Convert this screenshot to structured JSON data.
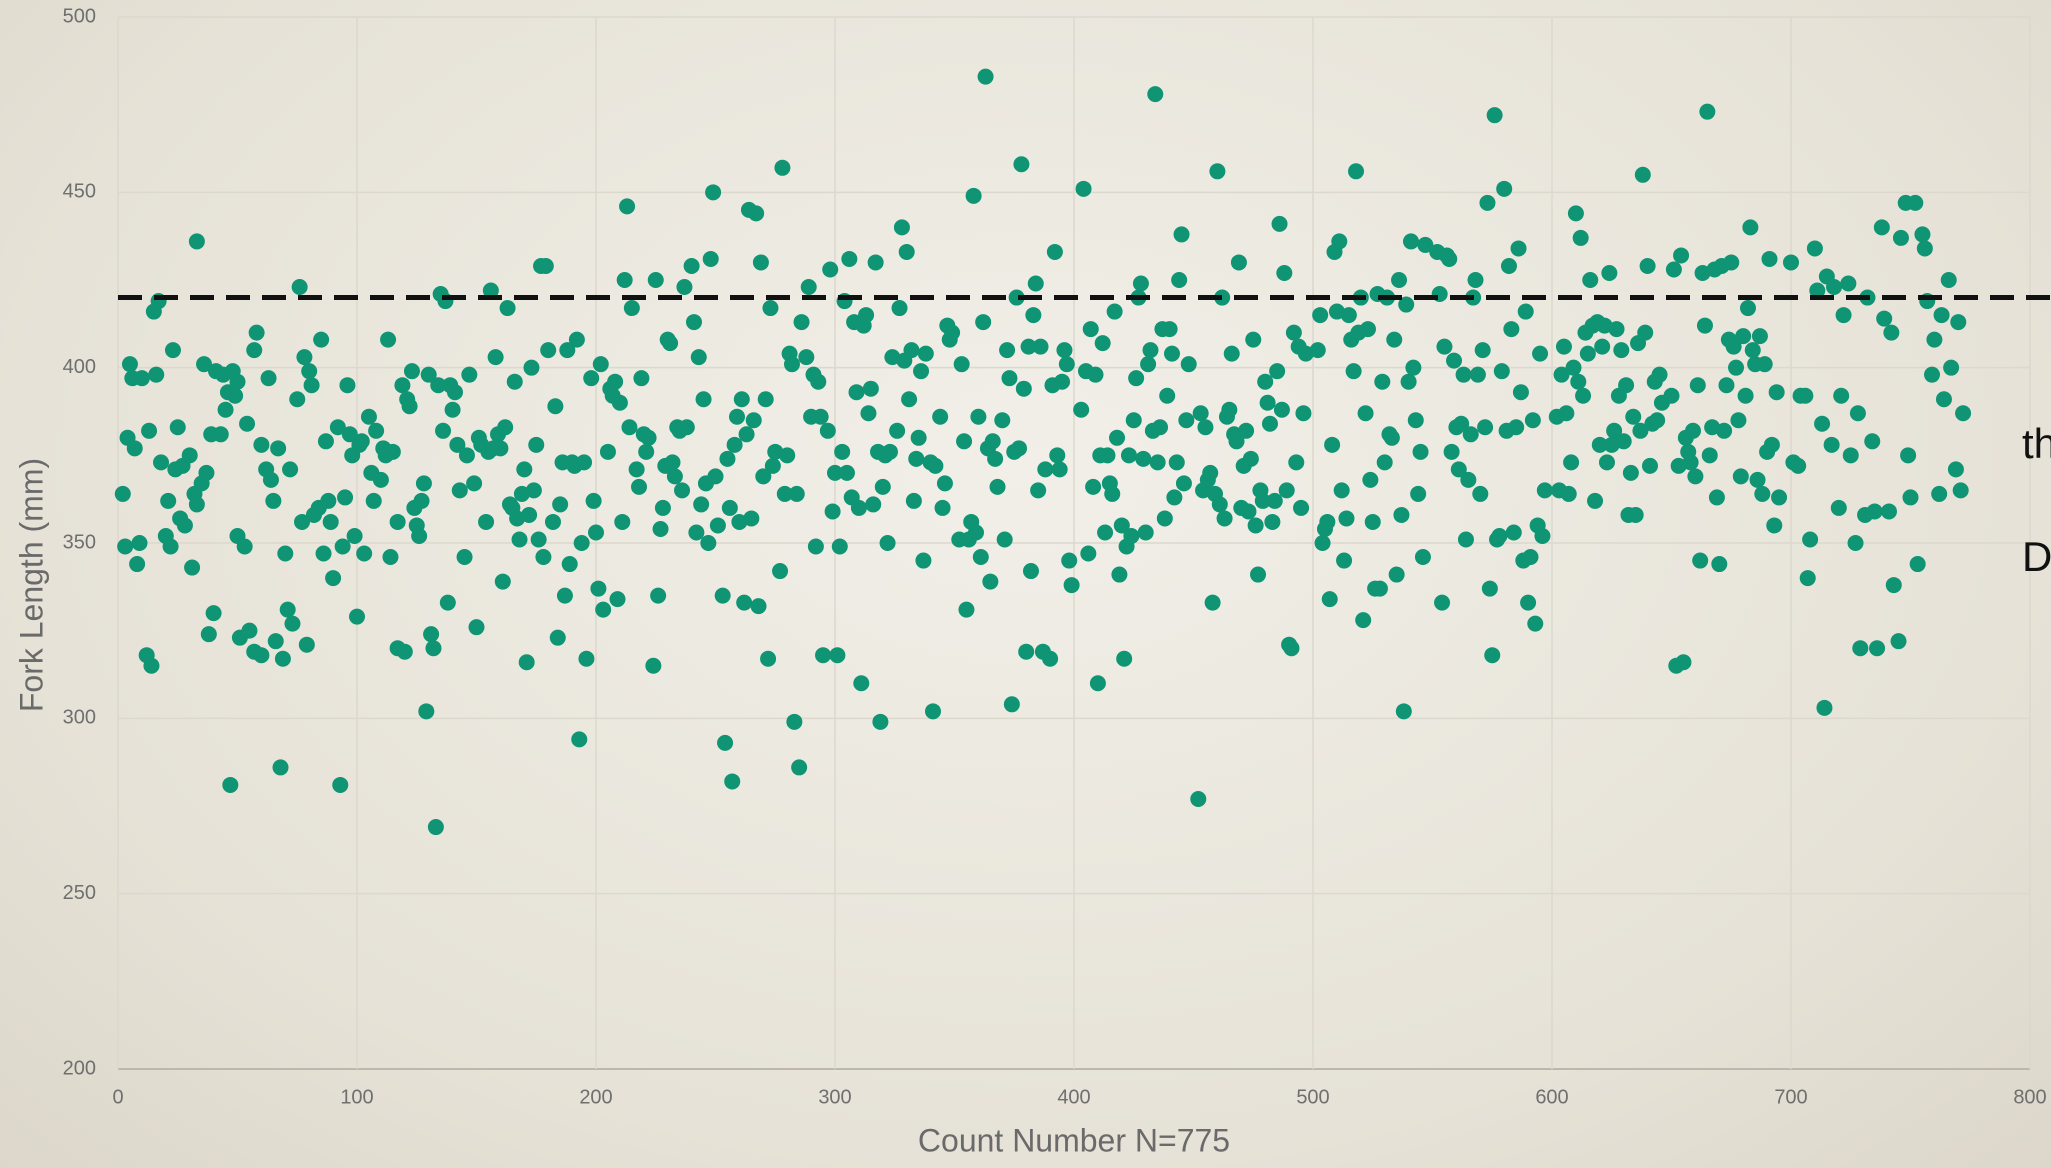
{
  "chart_data": {
    "type": "scatter",
    "xlabel": "Count Number N=775",
    "ylabel": "Fork Length (mm)",
    "annotations": [
      "th",
      "D"
    ],
    "reference_line": 420,
    "color": "#0f9474",
    "grid": true,
    "xlim": [
      0,
      800
    ],
    "xticks": [
      0,
      100,
      200,
      300,
      400,
      500,
      600,
      700,
      800
    ],
    "ylim": [
      200,
      500
    ],
    "yticks": [
      200,
      250,
      300,
      350,
      400,
      450,
      500
    ],
    "x": [
      2,
      3,
      4,
      5,
      6,
      7,
      8,
      9,
      10,
      12,
      13,
      14,
      15,
      16,
      17,
      18,
      20,
      21,
      22,
      23,
      24,
      25,
      26,
      27,
      28,
      30,
      31,
      32,
      33,
      33,
      35,
      36,
      37,
      38,
      39,
      40,
      41,
      43,
      44,
      45,
      46,
      47,
      48,
      49,
      50,
      50,
      51,
      53,
      54,
      55,
      57,
      57,
      58,
      60,
      60,
      62,
      63,
      64,
      65,
      66,
      67,
      68,
      69,
      70,
      71,
      72,
      73,
      75,
      76,
      77,
      78,
      79,
      80,
      81,
      82,
      84,
      85,
      86,
      87,
      88,
      89,
      90,
      92,
      93,
      94,
      95,
      96,
      97,
      98,
      99,
      100,
      101,
      102,
      103,
      105,
      106,
      107,
      108,
      110,
      111,
      112,
      113,
      114,
      115,
      117,
      117,
      119,
      120,
      121,
      122,
      123,
      124,
      125,
      126,
      127,
      128,
      129,
      130,
      131,
      132,
      133,
      134,
      135,
      136,
      137,
      138,
      139,
      140,
      141,
      142,
      143,
      145,
      146,
      147,
      149,
      150,
      151,
      152,
      154,
      155,
      156,
      157,
      158,
      159,
      160,
      161,
      162,
      163,
      164,
      165,
      166,
      167,
      168,
      169,
      170,
      171,
      172,
      173,
      174,
      175,
      176,
      177,
      178,
      179,
      180,
      182,
      183,
      184,
      185,
      186,
      187,
      188,
      189,
      190,
      191,
      192,
      193,
      194,
      195,
      196,
      198,
      199,
      200,
      201,
      202,
      203,
      205,
      206,
      207,
      208,
      209,
      210,
      211,
      212,
      213,
      214,
      215,
      217,
      218,
      219,
      220,
      221,
      222,
      224,
      225,
      226,
      227,
      228,
      229,
      230,
      231,
      232,
      233,
      234,
      235,
      236,
      237,
      238,
      240,
      241,
      242,
      243,
      244,
      245,
      246,
      247,
      248,
      249,
      250,
      251,
      253,
      254,
      255,
      256,
      257,
      258,
      259,
      260,
      261,
      262,
      263,
      264,
      265,
      266,
      267,
      268,
      269,
      270,
      271,
      272,
      273,
      274,
      275,
      277,
      278,
      279,
      280,
      281,
      282,
      283,
      284,
      285,
      286,
      288,
      289,
      290,
      291,
      292,
      293,
      294,
      295,
      297,
      298,
      299,
      300,
      301,
      302,
      303,
      304,
      305,
      306,
      307,
      308,
      309,
      310,
      311,
      312,
      313,
      314,
      315,
      316,
      317,
      318,
      319,
      320,
      321,
      322,
      323,
      324,
      326,
      327,
      328,
      329,
      330,
      331,
      332,
      333,
      334,
      335,
      336,
      337,
      338,
      340,
      341,
      342,
      344,
      345,
      346,
      347,
      348,
      349,
      352,
      353,
      354,
      355,
      356,
      357,
      358,
      359,
      360,
      361,
      362,
      363,
      364,
      365,
      366,
      367,
      368,
      370,
      371,
      372,
      373,
      374,
      375,
      376,
      377,
      378,
      379,
      380,
      381,
      382,
      383,
      384,
      385,
      386,
      387,
      388,
      390,
      391,
      392,
      393,
      394,
      395,
      396,
      397,
      398,
      399,
      403,
      404,
      405,
      406,
      407,
      408,
      409,
      410,
      411,
      412,
      413,
      414,
      415,
      416,
      417,
      418,
      419,
      420,
      421,
      422,
      423,
      424,
      425,
      426,
      427,
      428,
      429,
      430,
      431,
      432,
      433,
      434,
      435,
      436,
      437,
      438,
      439,
      440,
      441,
      442,
      443,
      444,
      445,
      446,
      447,
      448,
      452,
      453,
      454,
      455,
      456,
      457,
      458,
      459,
      460,
      461,
      462,
      463,
      464,
      465,
      466,
      467,
      468,
      469,
      470,
      471,
      472,
      473,
      474,
      475,
      476,
      477,
      478,
      479,
      480,
      481,
      482,
      483,
      484,
      485,
      486,
      487,
      488,
      489,
      490,
      491,
      492,
      493,
      494,
      495,
      496,
      497,
      502,
      503,
      504,
      505,
      506,
      507,
      508,
      509,
      510,
      511,
      512,
      513,
      514,
      515,
      516,
      517,
      518,
      519,
      520,
      521,
      522,
      523,
      524,
      525,
      526,
      527,
      528,
      529,
      530,
      531,
      532,
      533,
      534,
      535,
      536,
      537,
      538,
      539,
      540,
      541,
      542,
      543,
      544,
      545,
      546,
      547,
      552,
      553,
      554,
      555,
      556,
      557,
      558,
      559,
      560,
      561,
      562,
      563,
      564,
      565,
      566,
      567,
      568,
      569,
      570,
      571,
      572,
      573,
      574,
      575,
      576,
      577,
      578,
      579,
      580,
      581,
      582,
      583,
      584,
      585,
      586,
      587,
      588,
      589,
      590,
      591,
      592,
      593,
      594,
      595,
      596,
      597,
      602,
      603,
      604,
      605,
      606,
      607,
      608,
      609,
      610,
      611,
      612,
      613,
      614,
      615,
      616,
      617,
      618,
      619,
      620,
      621,
      622,
      623,
      624,
      625,
      626,
      627,
      628,
      629,
      630,
      631,
      632,
      633,
      634,
      635,
      636,
      637,
      638,
      639,
      640,
      641,
      642,
      643,
      644,
      645,
      646,
      650,
      651,
      652,
      653,
      654,
      655,
      656,
      657,
      658,
      659,
      660,
      661,
      662,
      663,
      664,
      665,
      666,
      667,
      668,
      669,
      670,
      671,
      672,
      673,
      674,
      675,
      676,
      677,
      678,
      679,
      680,
      681,
      682,
      683,
      684,
      685,
      686,
      687,
      688,
      689,
      690,
      691,
      692,
      693,
      694,
      695,
      700,
      701,
      703,
      704,
      706,
      707,
      708,
      710,
      711,
      713,
      714,
      715,
      717,
      718,
      720,
      721,
      722,
      724,
      725,
      727,
      728,
      729,
      731,
      732,
      734,
      735,
      736,
      738,
      739,
      741,
      742,
      743,
      745,
      746,
      748,
      749,
      750,
      752,
      753,
      755,
      756,
      757,
      759,
      760,
      762,
      763,
      764,
      766,
      767,
      769,
      770,
      771,
      772
    ],
    "values": [
      364,
      349,
      380,
      401,
      397,
      377,
      344,
      350,
      397,
      318,
      382,
      315,
      416,
      398,
      419,
      373,
      352,
      362,
      349,
      405,
      371,
      383,
      357,
      372,
      355,
      375,
      343,
      364,
      361,
      436,
      367,
      401,
      370,
      324,
      381,
      330,
      399,
      381,
      398,
      388,
      393,
      281,
      399,
      392,
      352,
      396,
      323,
      349,
      384,
      325,
      405,
      319,
      410,
      318,
      378,
      371,
      397,
      368,
      362,
      322,
      377,
      286,
      317,
      347,
      331,
      371,
      327,
      391,
      423,
      356,
      403,
      321,
      399,
      395,
      358,
      360,
      408,
      347,
      379,
      362,
      356,
      340,
      383,
      281,
      349,
      363,
      395,
      381,
      375,
      352,
      329,
      378,
      379,
      347,
      386,
      370,
      362,
      382,
      368,
      377,
      375,
      408,
      346,
      376,
      356,
      320,
      395,
      319,
      391,
      389,
      399,
      360,
      355,
      352,
      362,
      367,
      302,
      398,
      324,
      320,
      269,
      395,
      421,
      382,
      419,
      333,
      395,
      388,
      393,
      378,
      365,
      346,
      375,
      398,
      367,
      326,
      380,
      378,
      356,
      376,
      422,
      377,
      403,
      381,
      377,
      339,
      383,
      417,
      361,
      360,
      396,
      357,
      351,
      364,
      371,
      316,
      358,
      400,
      365,
      378,
      351,
      429,
      346,
      429,
      405,
      356,
      389,
      323,
      361,
      373,
      335,
      405,
      344,
      373,
      372,
      408,
      294,
      350,
      373,
      317,
      397,
      362,
      353,
      337,
      401,
      331,
      376,
      394,
      392,
      396,
      334,
      390,
      356,
      425,
      446,
      383,
      417,
      371,
      366,
      397,
      381,
      376,
      380,
      315,
      425,
      335,
      354,
      360,
      372,
      408,
      407,
      373,
      369,
      383,
      382,
      365,
      423,
      383,
      429,
      413,
      353,
      403,
      361,
      391,
      367,
      350,
      431,
      450,
      369,
      355,
      335,
      293,
      374,
      360,
      282,
      378,
      386,
      356,
      391,
      333,
      381,
      445,
      357,
      385,
      444,
      332,
      430,
      369,
      391,
      317,
      417,
      372,
      376,
      342,
      457,
      364,
      375,
      404,
      401,
      299,
      364,
      286,
      413,
      403,
      423,
      386,
      398,
      349,
      396,
      386,
      318,
      382,
      428,
      359,
      370,
      318,
      349,
      376,
      419,
      370,
      431,
      363,
      413,
      393,
      360,
      310,
      412,
      415,
      387,
      394,
      361,
      430,
      376,
      299,
      366,
      375,
      350,
      376,
      403,
      382,
      417,
      440,
      402,
      433,
      391,
      405,
      362,
      374,
      380,
      399,
      345,
      404,
      373,
      302,
      372,
      386,
      360,
      367,
      412,
      408,
      410,
      351,
      401,
      379,
      331,
      351,
      356,
      449,
      353,
      386,
      346,
      413,
      483,
      377,
      339,
      379,
      374,
      366,
      385,
      351,
      405,
      397,
      304,
      376,
      420,
      377,
      458,
      394,
      319,
      406,
      342,
      415,
      424,
      365,
      406,
      319,
      371,
      317,
      395,
      433,
      375,
      371,
      396,
      405,
      401,
      345,
      338,
      388,
      451,
      399,
      347,
      411,
      366,
      398,
      310,
      375,
      407,
      353,
      375,
      367,
      364,
      416,
      380,
      341,
      355,
      317,
      349,
      375,
      352,
      385,
      397,
      420,
      424,
      374,
      353,
      401,
      405,
      382,
      478,
      373,
      383,
      411,
      357,
      392,
      411,
      404,
      363,
      373,
      425,
      438,
      367,
      385,
      401,
      277,
      387,
      365,
      383,
      368,
      370,
      333,
      364,
      456,
      361,
      420,
      357,
      386,
      388,
      404,
      381,
      379,
      430,
      360,
      372,
      382,
      359,
      374,
      408,
      355,
      341,
      365,
      362,
      396,
      390,
      384,
      356,
      362,
      399,
      441,
      388,
      427,
      365,
      321,
      320,
      410,
      373,
      406,
      360,
      387,
      404,
      405,
      415,
      350,
      354,
      356,
      334,
      378,
      433,
      416,
      436,
      365,
      345,
      357,
      415,
      408,
      399,
      456,
      410,
      420,
      328,
      387,
      411,
      368,
      356,
      337,
      421,
      337,
      396,
      373,
      420,
      381,
      380,
      408,
      341,
      425,
      358,
      302,
      418,
      396,
      436,
      400,
      385,
      364,
      376,
      346,
      435,
      433,
      421,
      333,
      406,
      432,
      431,
      376,
      402,
      383,
      371,
      384,
      398,
      351,
      368,
      381,
      420,
      425,
      398,
      364,
      405,
      383,
      447,
      337,
      318,
      472,
      351,
      352,
      399,
      451,
      382,
      429,
      411,
      353,
      383,
      434,
      393,
      345,
      416,
      333,
      346,
      385,
      327,
      355,
      404,
      352,
      365,
      386,
      365,
      398,
      406,
      387,
      364,
      373,
      400,
      444,
      396,
      437,
      392,
      410,
      404,
      425,
      412,
      362,
      413,
      378,
      406,
      412,
      373,
      427,
      378,
      382,
      411,
      392,
      405,
      379,
      395,
      358,
      370,
      386,
      358,
      407,
      382,
      455,
      410,
      429,
      372,
      384,
      396,
      385,
      398,
      390,
      392,
      428,
      315,
      372,
      432,
      316,
      380,
      376,
      373,
      382,
      369,
      395,
      345,
      427,
      412,
      473,
      375,
      383,
      428,
      363,
      344,
      429,
      382,
      395,
      408,
      430,
      406,
      400,
      385,
      369,
      409,
      392,
      417,
      440,
      405,
      401,
      368,
      409,
      364,
      401,
      376,
      431,
      378,
      355,
      393,
      363,
      430,
      373,
      372,
      392,
      392,
      340,
      351,
      434,
      422,
      384,
      303,
      426,
      378,
      423,
      360,
      392,
      415,
      424,
      375,
      350,
      387,
      320,
      358,
      420,
      379,
      359,
      320,
      440,
      414,
      359,
      410,
      338,
      322,
      437,
      447,
      375,
      363,
      447,
      344,
      438,
      434,
      419,
      398,
      408,
      364,
      415,
      391,
      425,
      400,
      371,
      413,
      365,
      387
    ]
  }
}
